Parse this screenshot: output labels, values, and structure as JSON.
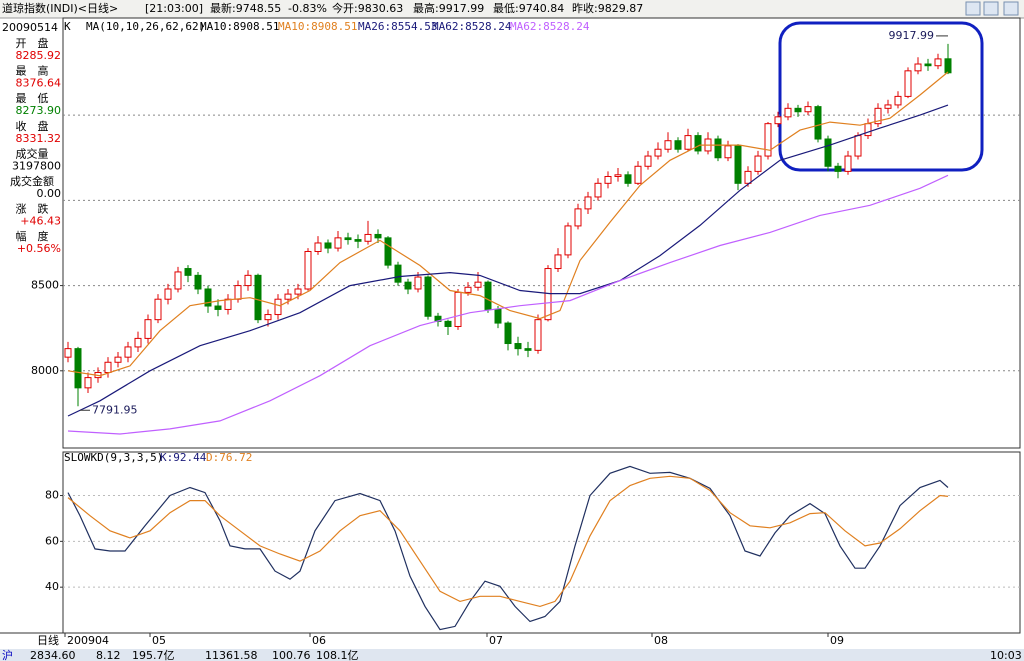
{
  "header": {
    "title": "道琼指数(INDI)<日线>",
    "time": "[21:03:00]",
    "items": [
      "最新:9748.55",
      "-0.83%",
      "今开:9830.63",
      "最高:9917.99",
      "最低:9740.84",
      "昨收:9829.87"
    ]
  },
  "price_legend": [
    "K",
    "MA(10,10,26,62,62)",
    "MA10:8908.51",
    "MA10:8908.51",
    "MA26:8554.53",
    "MA62:8528.24",
    "MA62:8528.24"
  ],
  "info_panel": {
    "date": "20090514",
    "rows": [
      {
        "label": "开　盘",
        "value": "8285.92"
      },
      {
        "label": "最　高",
        "value": "8376.64"
      },
      {
        "label": "最　低",
        "value": "8273.90"
      },
      {
        "label": "收　盘",
        "value": "8331.32"
      },
      {
        "label": "成交量",
        "value": "3197800"
      },
      {
        "label": "成交金额",
        "value": "0.00"
      },
      {
        "label": "涨　跌",
        "value": "+46.43"
      },
      {
        "label": "幅　度",
        "value": "+0.56%"
      }
    ]
  },
  "period_label": "日线",
  "status_bar": [
    "沪",
    "2834.60",
    "8.12",
    "195.7亿",
    "11361.58",
    "100.76",
    "108.1亿",
    "10:03"
  ],
  "chart_data": [
    {
      "type": "candlestick",
      "up_color": "#e00000",
      "down_color": "#008000",
      "xlim": [
        -0.5,
        95.2
      ],
      "ylim": [
        7547,
        10070
      ],
      "yticks": [
        8000,
        8500
      ],
      "gridlines": [
        8000,
        8500,
        9000,
        9500
      ],
      "candles": [
        [
          8080,
          8170,
          8050,
          8130
        ],
        [
          8130,
          8140,
          7791.95,
          7900
        ],
        [
          7900,
          7990,
          7870,
          7960
        ],
        [
          7960,
          8020,
          7930,
          7990
        ],
        [
          7990,
          8080,
          7960,
          8050
        ],
        [
          8050,
          8110,
          8020,
          8080
        ],
        [
          8080,
          8170,
          8050,
          8140
        ],
        [
          8140,
          8230,
          8110,
          8190
        ],
        [
          8190,
          8330,
          8160,
          8300
        ],
        [
          8300,
          8450,
          8280,
          8420
        ],
        [
          8420,
          8510,
          8390,
          8480
        ],
        [
          8480,
          8610,
          8460,
          8580
        ],
        [
          8600,
          8620,
          8520,
          8560
        ],
        [
          8560,
          8580,
          8450,
          8480
        ],
        [
          8480,
          8500,
          8340,
          8380
        ],
        [
          8380,
          8420,
          8320,
          8360
        ],
        [
          8360,
          8450,
          8330,
          8420
        ],
        [
          8420,
          8530,
          8400,
          8500
        ],
        [
          8500,
          8590,
          8470,
          8560
        ],
        [
          8560,
          8570,
          8280,
          8300
        ],
        [
          8300,
          8360,
          8260,
          8330
        ],
        [
          8330,
          8450,
          8300,
          8420
        ],
        [
          8420,
          8480,
          8390,
          8450
        ],
        [
          8450,
          8510,
          8420,
          8480
        ],
        [
          8480,
          8720,
          8470,
          8700
        ],
        [
          8700,
          8790,
          8680,
          8750
        ],
        [
          8750,
          8770,
          8690,
          8720
        ],
        [
          8720,
          8820,
          8700,
          8780
        ],
        [
          8780,
          8810,
          8740,
          8770
        ],
        [
          8770,
          8800,
          8720,
          8760
        ],
        [
          8760,
          8880,
          8740,
          8800
        ],
        [
          8800,
          8830,
          8750,
          8780
        ],
        [
          8780,
          8790,
          8600,
          8620
        ],
        [
          8620,
          8640,
          8500,
          8520
        ],
        [
          8520,
          8540,
          8450,
          8480
        ],
        [
          8480,
          8580,
          8460,
          8550
        ],
        [
          8550,
          8560,
          8300,
          8320
        ],
        [
          8320,
          8340,
          8260,
          8290
        ],
        [
          8290,
          8300,
          8210,
          8260
        ],
        [
          8260,
          8480,
          8240,
          8460
        ],
        [
          8460,
          8520,
          8440,
          8490
        ],
        [
          8490,
          8580,
          8470,
          8520
        ],
        [
          8520,
          8530,
          8340,
          8360
        ],
        [
          8360,
          8380,
          8250,
          8280
        ],
        [
          8280,
          8290,
          8120,
          8160
        ],
        [
          8160,
          8200,
          8090,
          8130
        ],
        [
          8130,
          8170,
          8080,
          8120
        ],
        [
          8120,
          8330,
          8100,
          8300
        ],
        [
          8300,
          8620,
          8290,
          8600
        ],
        [
          8600,
          8720,
          8580,
          8680
        ],
        [
          8680,
          8870,
          8660,
          8850
        ],
        [
          8850,
          8980,
          8830,
          8950
        ],
        [
          8950,
          9050,
          8920,
          9020
        ],
        [
          9020,
          9130,
          9000,
          9100
        ],
        [
          9100,
          9170,
          9070,
          9140
        ],
        [
          9140,
          9190,
          9110,
          9150
        ],
        [
          9150,
          9170,
          9080,
          9100
        ],
        [
          9100,
          9230,
          9090,
          9200
        ],
        [
          9200,
          9290,
          9180,
          9260
        ],
        [
          9260,
          9340,
          9240,
          9300
        ],
        [
          9300,
          9400,
          9280,
          9350
        ],
        [
          9350,
          9370,
          9280,
          9300
        ],
        [
          9300,
          9420,
          9290,
          9380
        ],
        [
          9380,
          9400,
          9270,
          9290
        ],
        [
          9290,
          9400,
          9270,
          9360
        ],
        [
          9360,
          9380,
          9230,
          9250
        ],
        [
          9250,
          9350,
          9230,
          9320
        ],
        [
          9320,
          9330,
          9060,
          9100
        ],
        [
          9100,
          9200,
          9080,
          9170
        ],
        [
          9170,
          9290,
          9150,
          9260
        ],
        [
          9260,
          9460,
          9240,
          9450
        ],
        [
          9450,
          9520,
          9430,
          9490
        ],
        [
          9490,
          9570,
          9470,
          9540
        ],
        [
          9540,
          9560,
          9490,
          9520
        ],
        [
          9520,
          9580,
          9500,
          9550
        ],
        [
          9550,
          9560,
          9340,
          9360
        ],
        [
          9360,
          9380,
          9170,
          9200
        ],
        [
          9200,
          9220,
          9130,
          9170
        ],
        [
          9170,
          9290,
          9150,
          9260
        ],
        [
          9260,
          9400,
          9240,
          9380
        ],
        [
          9380,
          9480,
          9360,
          9450
        ],
        [
          9450,
          9570,
          9430,
          9540
        ],
        [
          9540,
          9590,
          9510,
          9560
        ],
        [
          9560,
          9640,
          9540,
          9610
        ],
        [
          9610,
          9780,
          9600,
          9760
        ],
        [
          9760,
          9840,
          9740,
          9800
        ],
        [
          9800,
          9830,
          9760,
          9790
        ],
        [
          9790,
          9860,
          9770,
          9830
        ],
        [
          9830.63,
          9917.99,
          9740.84,
          9748.55
        ]
      ],
      "series": [
        {
          "color": "#e08020",
          "x": [
            0,
            3.2,
            6.2,
            9.2,
            12.2,
            15.2,
            18.2,
            21.2,
            24.2,
            27.2,
            31.2,
            35.2,
            38.2,
            41.2,
            44.2,
            47.2,
            49.2,
            51.2,
            54.2,
            57.2,
            60.2,
            63.2,
            67.2,
            70.2,
            73.2,
            76.2,
            79.2,
            82.2,
            85.2,
            88
          ],
          "values": [
            8000,
            7971,
            8029,
            8235,
            8382,
            8412,
            8429,
            8382,
            8471,
            8635,
            8765,
            8618,
            8471,
            8441,
            8353,
            8306,
            8353,
            8647,
            8871,
            9088,
            9235,
            9324,
            9324,
            9294,
            9412,
            9459,
            9441,
            9482,
            9618,
            9753
          ]
        },
        {
          "color": "#1a1a7a",
          "x": [
            0,
            3.2,
            8.2,
            13.2,
            18.2,
            23.2,
            28.2,
            33.2,
            38.2,
            41.2,
            45.2,
            48.2,
            51.2,
            55.2,
            59.2,
            63.2,
            67.2,
            71.2,
            76.2,
            81.2,
            85.2,
            88
          ],
          "values": [
            7735,
            7824,
            8000,
            8147,
            8235,
            8341,
            8500,
            8553,
            8576,
            8559,
            8471,
            8453,
            8453,
            8529,
            8676,
            8853,
            9059,
            9235,
            9324,
            9424,
            9500,
            9559
          ]
        },
        {
          "color": "#c060ff",
          "x": [
            0,
            5.2,
            10.2,
            15.2,
            20.2,
            25.2,
            30.2,
            35.2,
            40.2,
            45.2,
            50.2,
            55.2,
            60.2,
            65.2,
            70.2,
            75.2,
            80.2,
            85.2,
            88
          ],
          "values": [
            7647,
            7629,
            7659,
            7706,
            7824,
            7971,
            8147,
            8265,
            8341,
            8382,
            8412,
            8529,
            8635,
            8735,
            8812,
            8912,
            8971,
            9071,
            9147
          ]
        }
      ],
      "annotations": [
        {
          "x": 88,
          "value": 9917.99
        },
        {
          "x": 1,
          "value": 7791.95
        }
      ]
    },
    {
      "type": "line",
      "xlim": [
        -0.5,
        95.2
      ],
      "ylim": [
        20,
        99
      ],
      "yticks": [
        40,
        60,
        80
      ],
      "legend": [
        {
          "text": "SLOWKD(9,3,3,5)",
          "color": "#000000"
        },
        {
          "text": "K:92.44",
          "color": "#1a1a7a"
        },
        {
          "text": "D:76.72",
          "color": "#e08020"
        }
      ],
      "xticks": [
        {
          "value": -0.3,
          "label": "200904"
        },
        {
          "value": 8.2,
          "label": "05"
        },
        {
          "value": 24.2,
          "label": "06"
        },
        {
          "value": 41.9,
          "label": "07"
        },
        {
          "value": 58.4,
          "label": "08"
        },
        {
          "value": 76,
          "label": "09"
        }
      ],
      "series": [
        {
          "color": "#203060",
          "x": [
            0,
            1.2,
            2.7,
            4.2,
            5.7,
            7.7,
            10.2,
            12.2,
            13.7,
            15.2,
            16.2,
            17.7,
            19.2,
            20.7,
            22.2,
            23.2,
            24.7,
            26.7,
            29.2,
            31.2,
            32.7,
            34.2,
            35.7,
            37.2,
            38.7,
            40.2,
            41.7,
            43.2,
            44.7,
            46.2,
            47.7,
            49.2,
            50.7,
            52.2,
            54.2,
            56.2,
            58.2,
            60.2,
            62.2,
            64.2,
            66.2,
            67.7,
            69.2,
            70.7,
            72.2,
            74.2,
            75.7,
            77.2,
            78.7,
            79.7,
            81.2,
            83.2,
            85.2,
            87.2,
            88
          ],
          "values": [
            81.3,
            71.2,
            56.7,
            55.8,
            55.8,
            66.8,
            80,
            83.5,
            81.3,
            69,
            58,
            56.7,
            56.7,
            47,
            43.5,
            47,
            64.6,
            77.8,
            80.9,
            77.8,
            64.6,
            44.8,
            31.6,
            21.5,
            22.9,
            33.8,
            42.6,
            40.4,
            31.6,
            25,
            27.2,
            33.8,
            58,
            80,
            89.7,
            92.7,
            89.7,
            90.1,
            87.5,
            83.1,
            71.2,
            55.8,
            53.6,
            63.7,
            71.2,
            76.5,
            72.1,
            58,
            48.3,
            48.3,
            58,
            75.6,
            83.5,
            86.6,
            83.5
          ]
        },
        {
          "color": "#e08020",
          "x": [
            0,
            2.2,
            4.2,
            6.2,
            8.2,
            10.2,
            12.2,
            13.7,
            15.2,
            17.2,
            19.2,
            21.2,
            23.2,
            25.2,
            27.2,
            29.2,
            31.2,
            33.2,
            35.2,
            37.2,
            39.2,
            41.2,
            43.2,
            45.2,
            47.2,
            48.7,
            50.2,
            52.2,
            54.2,
            56.2,
            58.2,
            60.2,
            62.2,
            64.2,
            66.2,
            68.2,
            70.2,
            72.2,
            74.2,
            75.7,
            77.7,
            79.7,
            81.2,
            83.2,
            85.2,
            87.2,
            88
          ],
          "values": [
            79.1,
            71.2,
            64.6,
            61.5,
            64.6,
            72.5,
            77.8,
            77.8,
            71.2,
            64.6,
            58,
            54.5,
            51.4,
            55.8,
            64.6,
            71.2,
            73.4,
            64.6,
            51.4,
            38.2,
            33.8,
            36,
            36,
            33.8,
            31.6,
            33.8,
            42.6,
            62.4,
            77.8,
            84.4,
            87.5,
            88.4,
            87.5,
            82.2,
            72.5,
            66.8,
            65.9,
            68.1,
            72.1,
            72.5,
            64.6,
            58,
            59.3,
            65.5,
            73.4,
            80,
            79.6
          ]
        }
      ]
    }
  ]
}
